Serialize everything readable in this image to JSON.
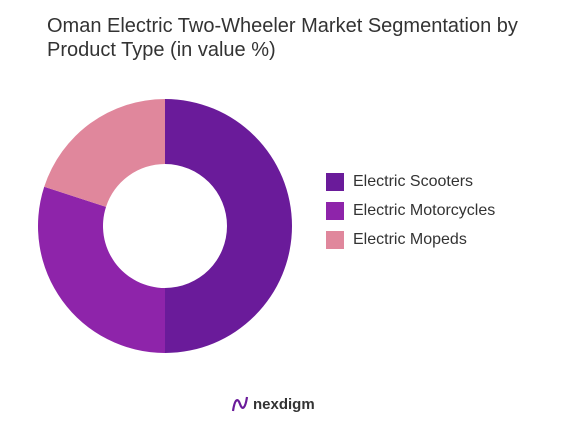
{
  "chart_data": {
    "type": "donut",
    "title": "Oman Electric Two-Wheeler Market Segmentation by Product Type (in value %)",
    "categories": [
      "Electric Scooters",
      "Electric Motorcycles",
      "Electric Mopeds"
    ],
    "values": [
      50,
      30,
      20
    ],
    "colors": [
      "#6a1b9a",
      "#8e24aa",
      "#e0879c"
    ],
    "legend": "right"
  },
  "brand": "nexdigm"
}
